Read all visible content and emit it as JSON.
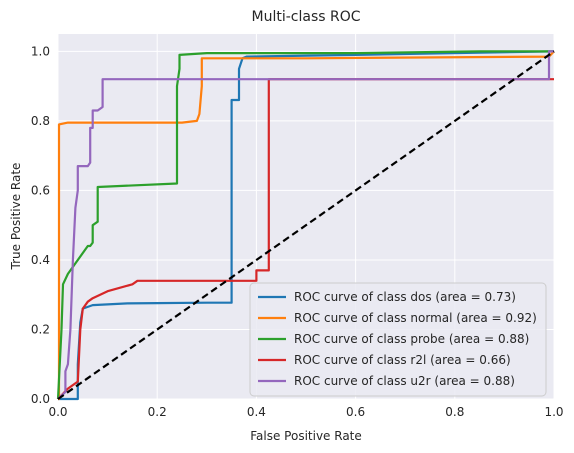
{
  "chart_data": {
    "type": "line",
    "title": "Multi-class ROC",
    "xlabel": "False Positive Rate",
    "ylabel": "True Positive Rate",
    "xlim": [
      0,
      1
    ],
    "ylim": [
      0,
      1.05
    ],
    "grid": true,
    "legend_position": "bottom-right",
    "background_color": "#eaeaf2",
    "grid_color": "#ffffff",
    "x_ticks": [
      "0.0",
      "0.2",
      "0.4",
      "0.6",
      "0.8",
      "1.0"
    ],
    "y_ticks": [
      "0.0",
      "0.2",
      "0.4",
      "0.6",
      "0.8",
      "1.0"
    ],
    "series": [
      {
        "name": "ROC curve of class dos (area = 0.73)",
        "color": "#1f77b4",
        "x": [
          0,
          0.04,
          0.04,
          0.045,
          0.05,
          0.07,
          0.1,
          0.14,
          0.2,
          0.3,
          0.35,
          0.35,
          0.365,
          0.365,
          0.372,
          0.38,
          0.6,
          1.0
        ],
        "y": [
          0,
          0,
          0.1,
          0.22,
          0.26,
          0.27,
          0.272,
          0.275,
          0.276,
          0.277,
          0.277,
          0.86,
          0.86,
          0.95,
          0.98,
          0.985,
          0.99,
          1.0
        ]
      },
      {
        "name": "ROC curve of class normal (area = 0.92)",
        "color": "#ff7f0e",
        "x": [
          0,
          0.002,
          0.002,
          0.02,
          0.25,
          0.28,
          0.285,
          0.29,
          0.29,
          0.5,
          0.99,
          1.0
        ],
        "y": [
          0,
          0,
          0.79,
          0.795,
          0.795,
          0.8,
          0.82,
          0.9,
          0.98,
          0.98,
          0.985,
          1.0
        ]
      },
      {
        "name": "ROC curve of class probe (area = 0.88)",
        "color": "#2ca02c",
        "x": [
          0,
          0.007,
          0.01,
          0.02,
          0.04,
          0.06,
          0.065,
          0.07,
          0.07,
          0.08,
          0.08,
          0.24,
          0.24,
          0.245,
          0.245,
          0.3,
          0.6,
          0.85,
          1.0
        ],
        "y": [
          0,
          0.2,
          0.33,
          0.36,
          0.4,
          0.44,
          0.44,
          0.45,
          0.5,
          0.51,
          0.61,
          0.62,
          0.9,
          0.95,
          0.99,
          0.995,
          0.995,
          1.0,
          1.0
        ]
      },
      {
        "name": "ROC curve of class r2l (area = 0.66)",
        "color": "#d62728",
        "x": [
          0,
          0.02,
          0.04,
          0.045,
          0.05,
          0.06,
          0.07,
          0.1,
          0.15,
          0.16,
          0.4,
          0.4,
          0.425,
          0.425,
          0.55,
          1.0
        ],
        "y": [
          0,
          0.03,
          0.05,
          0.2,
          0.26,
          0.28,
          0.29,
          0.31,
          0.33,
          0.34,
          0.34,
          0.37,
          0.37,
          0.92,
          0.92,
          0.92
        ]
      },
      {
        "name": "ROC curve of class u2r (area = 0.88)",
        "color": "#9467bd",
        "x": [
          0,
          0.015,
          0.015,
          0.02,
          0.025,
          0.03,
          0.035,
          0.04,
          0.04,
          0.06,
          0.065,
          0.065,
          0.07,
          0.07,
          0.08,
          0.09,
          0.09,
          0.99,
          0.99,
          1.0
        ],
        "y": [
          0,
          0.02,
          0.08,
          0.1,
          0.2,
          0.4,
          0.55,
          0.6,
          0.67,
          0.67,
          0.68,
          0.78,
          0.78,
          0.83,
          0.83,
          0.84,
          0.92,
          0.92,
          1.0,
          1.0
        ]
      },
      {
        "name": "",
        "color": "#000000",
        "dashed": true,
        "x": [
          0,
          1
        ],
        "y": [
          0,
          1
        ]
      }
    ]
  }
}
